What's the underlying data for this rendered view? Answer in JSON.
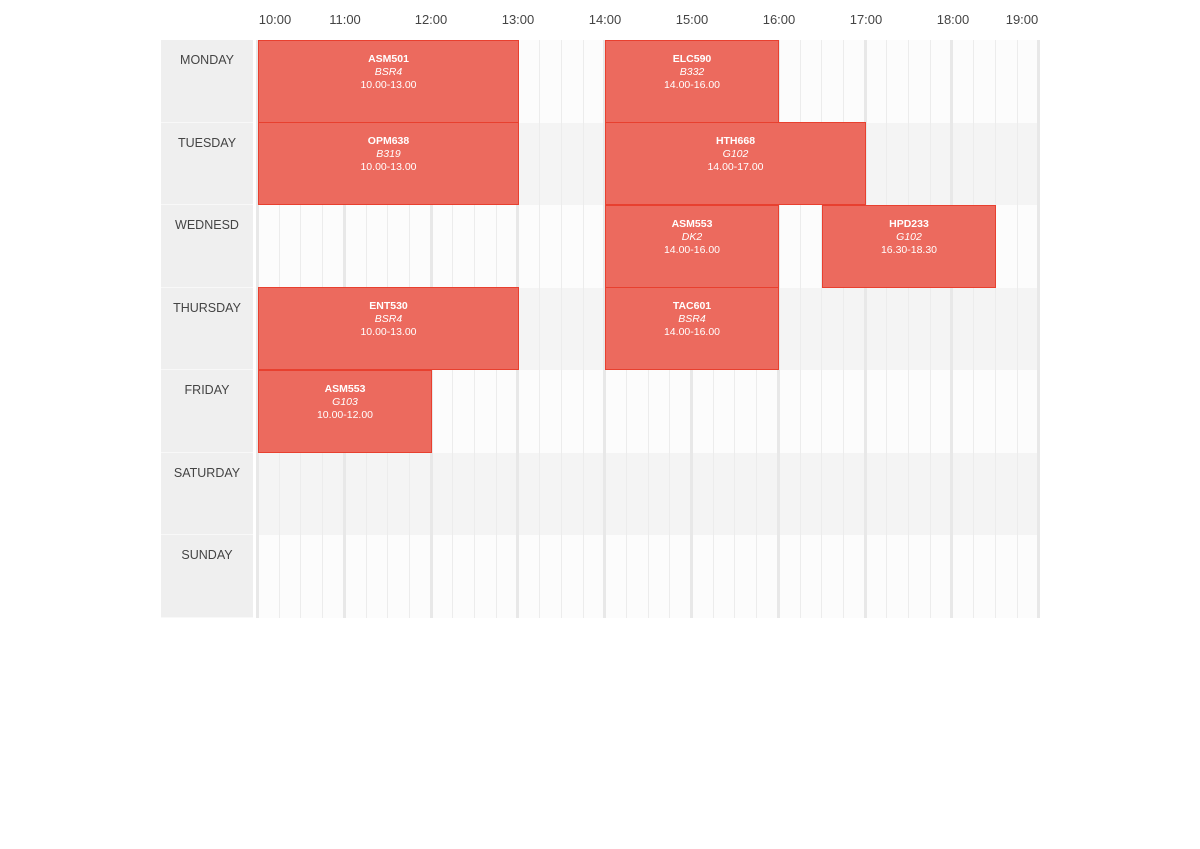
{
  "timeline": {
    "hours": [
      "10:00",
      "11:00",
      "12:00",
      "13:00",
      "14:00",
      "15:00",
      "16:00",
      "17:00",
      "18:00",
      "19:00"
    ],
    "days": [
      "MONDAY",
      "TUESDAY",
      "WEDNESD",
      "THURSDAY",
      "FRIDAY",
      "SATURDAY",
      "SUNDAY"
    ],
    "colors": {
      "event_fill": "#ec6a5e",
      "event_border": "#e8402f",
      "day_label_bg": "#efefef"
    },
    "events": [
      {
        "day": 0,
        "code": "ASM501",
        "room": "BSR4",
        "time": "10.00-13.00",
        "start": 10.0,
        "end": 13.0
      },
      {
        "day": 0,
        "code": "ELC590",
        "room": "B332",
        "time": "14.00-16.00",
        "start": 14.0,
        "end": 16.0
      },
      {
        "day": 1,
        "code": "OPM638",
        "room": "B319",
        "time": "10.00-13.00",
        "start": 10.0,
        "end": 13.0
      },
      {
        "day": 1,
        "code": "HTH668",
        "room": "G102",
        "time": "14.00-17.00",
        "start": 14.0,
        "end": 17.0
      },
      {
        "day": 2,
        "code": "ASM553",
        "room": "DK2",
        "time": "14.00-16.00",
        "start": 14.0,
        "end": 16.0
      },
      {
        "day": 2,
        "code": "HPD233",
        "room": "G102",
        "time": "16.30-18.30",
        "start": 16.5,
        "end": 18.5
      },
      {
        "day": 3,
        "code": "ENT530",
        "room": "BSR4",
        "time": "10.00-13.00",
        "start": 10.0,
        "end": 13.0
      },
      {
        "day": 3,
        "code": "TAC601",
        "room": "BSR4",
        "time": "14.00-16.00",
        "start": 14.0,
        "end": 16.0
      },
      {
        "day": 4,
        "code": "ASM553",
        "room": "G103",
        "time": "10.00-12.00",
        "start": 10.0,
        "end": 12.0
      }
    ]
  }
}
